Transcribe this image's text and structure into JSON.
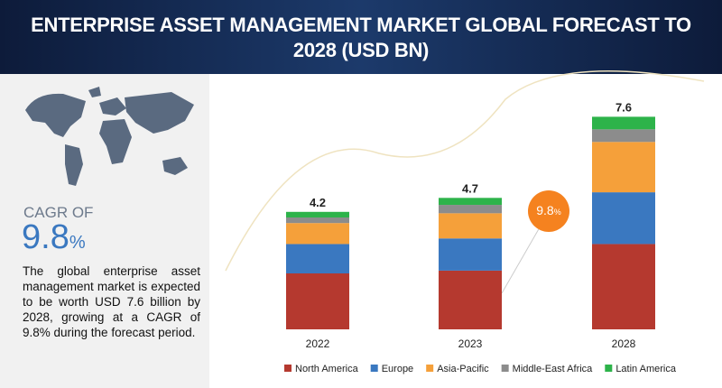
{
  "chart_data": {
    "type": "stacked_bar",
    "title": "ENTERPRISE ASSET MANAGEMENT MARKET GLOBAL FORECAST TO 2028 (USD BN)",
    "categories": [
      "2022",
      "2023",
      "2028"
    ],
    "series": [
      {
        "name": "North America",
        "color": "#b5392f",
        "values": [
          2.0,
          2.1,
          3.05
        ]
      },
      {
        "name": "Europe",
        "color": "#3a78c0",
        "values": [
          1.05,
          1.15,
          1.85
        ]
      },
      {
        "name": "Asia-Pacific",
        "color": "#f5a03a",
        "values": [
          0.75,
          0.9,
          1.8
        ]
      },
      {
        "name": "Middle-East Africa",
        "color": "#8c8c8c",
        "values": [
          0.2,
          0.3,
          0.45
        ]
      },
      {
        "name": "Latin America",
        "color": "#2db34a",
        "values": [
          0.2,
          0.25,
          0.45
        ]
      }
    ],
    "totals": [
      4.2,
      4.7,
      7.6
    ],
    "legend": "bottom"
  },
  "cagr": {
    "label": "CAGR OF",
    "value": "9.8",
    "unit": "%"
  },
  "bubble": {
    "value": "9.8",
    "unit": "%"
  },
  "description": "The global enterprise asset management market is expected to be worth USD 7.6 billion by 2028, growing at a CAGR of 9.8% during the forecast period."
}
